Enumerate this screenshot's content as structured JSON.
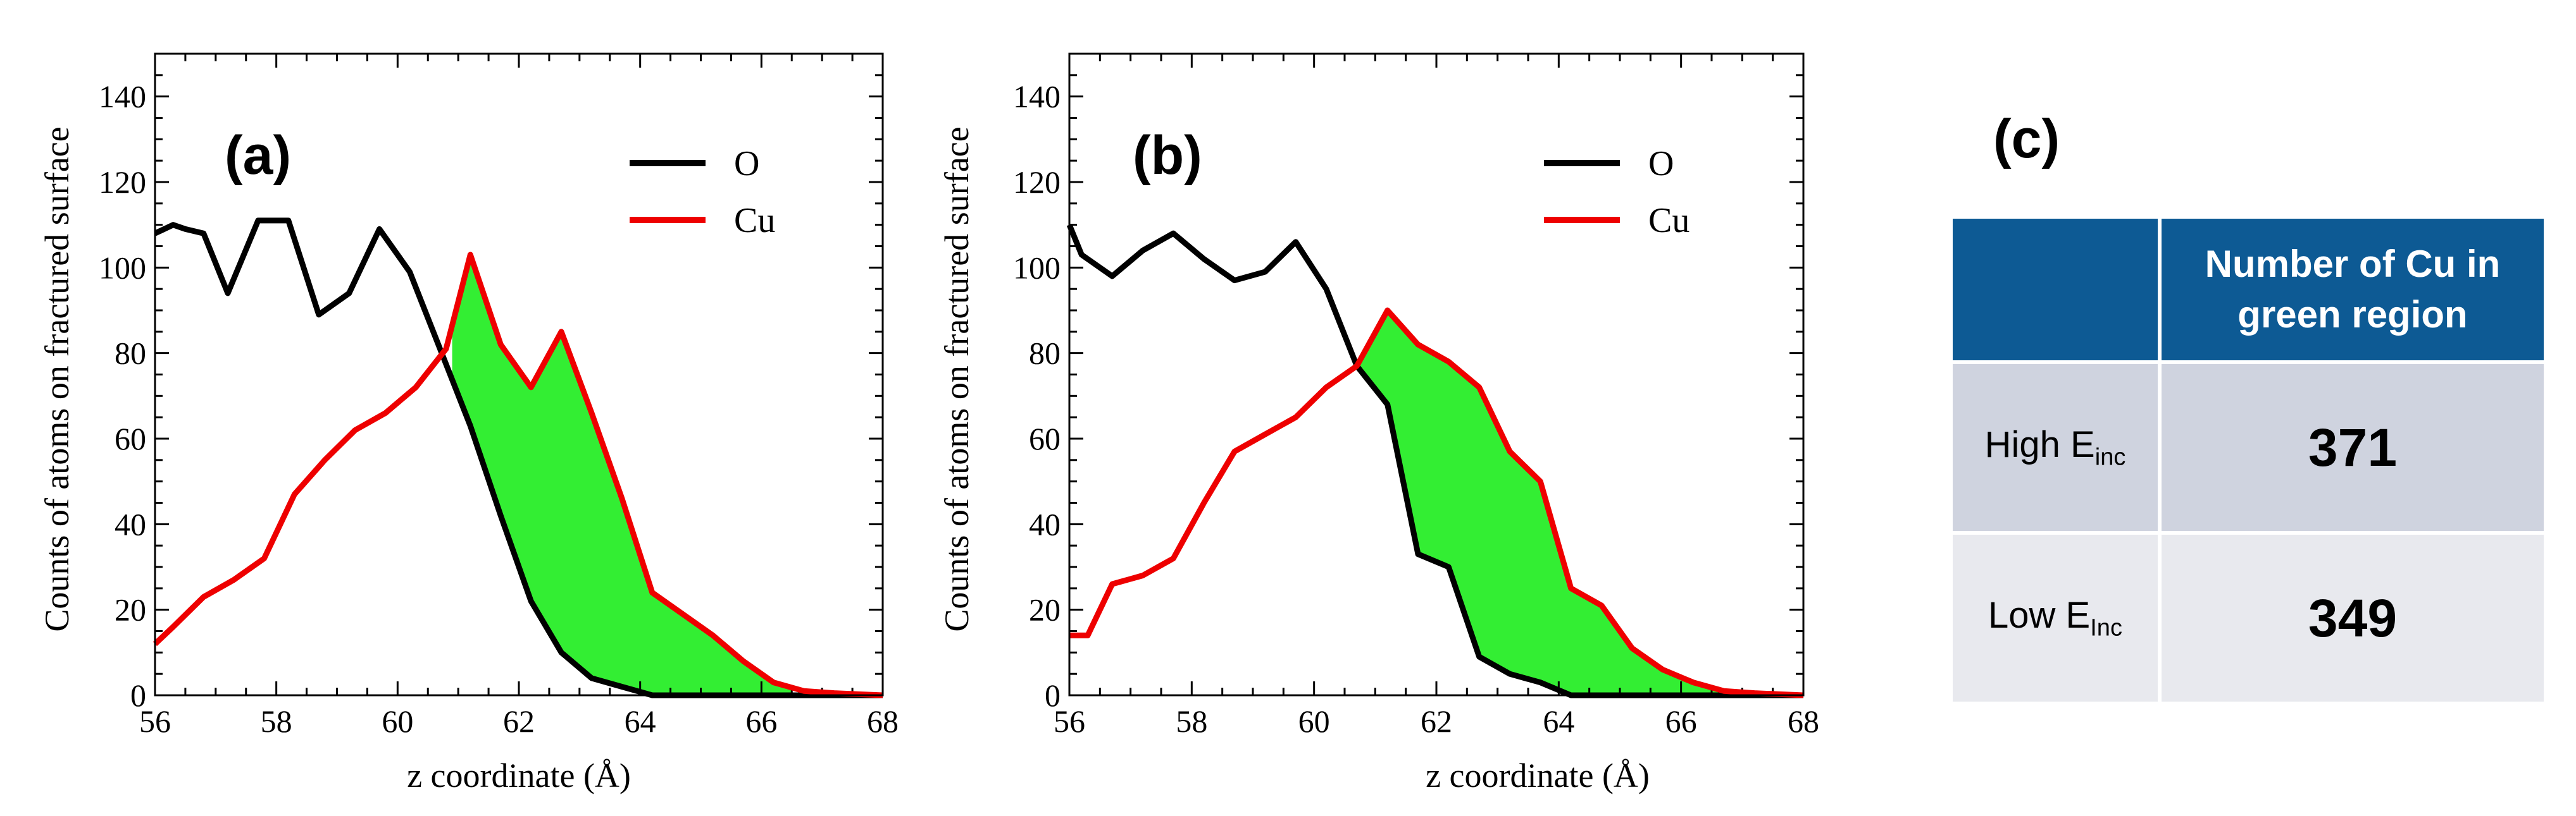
{
  "chart_data": [
    {
      "type": "line",
      "panel": "(a)",
      "xlabel": "z coordinate (Å)",
      "ylabel": "Counts of atoms on fractured surface",
      "xlim": [
        56,
        68
      ],
      "ylim": [
        0,
        150
      ],
      "x_ticks": [
        56,
        58,
        60,
        62,
        64,
        66,
        68
      ],
      "y_ticks": [
        0,
        20,
        40,
        60,
        80,
        100,
        120,
        140
      ],
      "legend": "top-right",
      "fill_between": {
        "color": "#33ee33",
        "x_range": [
          60.9,
          66.5
        ],
        "note": "region between Cu and O curves"
      },
      "series": [
        {
          "name": "O",
          "color": "#000000",
          "x": [
            56,
            56.3,
            56.5,
            56.8,
            57.2,
            57.7,
            58.2,
            58.7,
            59.2,
            59.7,
            60.2,
            60.7,
            61.2,
            61.7,
            62.2,
            62.7,
            63.2,
            63.7,
            64.2,
            65,
            66,
            67,
            68
          ],
          "y": [
            108,
            110,
            109,
            108,
            94,
            111,
            111,
            89,
            94,
            109,
            99,
            81,
            63,
            42,
            22,
            10,
            4,
            2,
            0,
            0,
            0,
            0,
            0
          ]
        },
        {
          "name": "Cu",
          "color": "#ee0000",
          "x": [
            56,
            56.3,
            56.8,
            57.3,
            57.8,
            58.3,
            58.8,
            59.3,
            59.8,
            60.3,
            60.8,
            61.2,
            61.7,
            62.2,
            62.7,
            63.2,
            63.7,
            64.2,
            64.7,
            65.2,
            65.7,
            66.2,
            66.7,
            67.2,
            68
          ],
          "y": [
            12,
            16,
            23,
            27,
            32,
            47,
            55,
            62,
            66,
            72,
            81,
            103,
            82,
            72,
            85,
            66,
            46,
            24,
            19,
            14,
            8,
            3,
            1,
            0.5,
            0
          ]
        }
      ]
    },
    {
      "type": "line",
      "panel": "(b)",
      "xlabel": "z coordinate (Å)",
      "ylabel": "Counts of atoms on fractured surface",
      "xlim": [
        56,
        68
      ],
      "ylim": [
        0,
        150
      ],
      "x_ticks": [
        56,
        58,
        60,
        62,
        64,
        66,
        68
      ],
      "y_ticks": [
        0,
        20,
        40,
        60,
        80,
        100,
        120,
        140
      ],
      "legend": "top-right",
      "fill_between": {
        "color": "#33ee33",
        "x_range": [
          60.7,
          67
        ],
        "note": "region between Cu and O curves"
      },
      "series": [
        {
          "name": "O",
          "color": "#000000",
          "x": [
            56,
            56.2,
            56.7,
            57.2,
            57.7,
            58.2,
            58.7,
            59.2,
            59.7,
            60.2,
            60.7,
            61.2,
            61.7,
            62.2,
            62.7,
            63.2,
            63.7,
            64.2,
            65,
            66,
            67,
            68
          ],
          "y": [
            110,
            103,
            98,
            104,
            108,
            102,
            97,
            99,
            106,
            95,
            77,
            68,
            33,
            30,
            9,
            5,
            3,
            0,
            0,
            0,
            0,
            0
          ]
        },
        {
          "name": "Cu",
          "color": "#ee0000",
          "x": [
            56,
            56.3,
            56.7,
            57.2,
            57.7,
            58.2,
            58.7,
            59.2,
            59.7,
            60.2,
            60.7,
            61.2,
            61.7,
            62.2,
            62.7,
            63.2,
            63.7,
            64.2,
            64.7,
            65.2,
            65.7,
            66.2,
            66.7,
            67.2,
            68
          ],
          "y": [
            14,
            14,
            26,
            28,
            32,
            45,
            57,
            61,
            65,
            72,
            77,
            90,
            82,
            78,
            72,
            57,
            50,
            25,
            21,
            11,
            6,
            3,
            1,
            0.5,
            0
          ]
        }
      ]
    },
    {
      "type": "table",
      "panel": "(c)",
      "header": [
        "",
        "Number of Cu in green region"
      ],
      "rows": [
        {
          "label": "High E",
          "label_sub": "inc",
          "value": 371
        },
        {
          "label": "Low E",
          "label_sub": "Inc",
          "value": 349
        }
      ],
      "colors": {
        "header_bg": "#0d5a94",
        "row1_bg": "#cfd3df",
        "row2_bg": "#e8e9ee"
      }
    }
  ]
}
